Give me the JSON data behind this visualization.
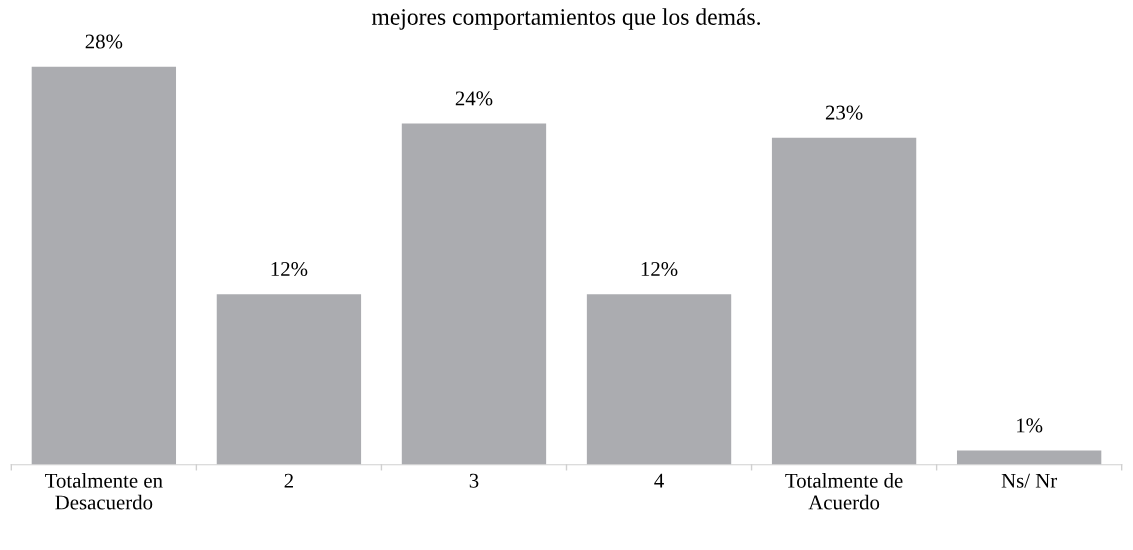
{
  "chart_data": {
    "type": "bar",
    "title": "mejores comportamientos que los demás.",
    "categories": [
      "Totalmente en\nDesacuerdo",
      "2",
      "3",
      "4",
      "Totalmente de\nAcuerdo",
      "Ns/ Nr"
    ],
    "values": [
      28,
      12,
      24,
      12,
      23,
      1
    ],
    "color": "#abacb0",
    "data_labels": true,
    "value_labels": [
      "28%",
      "12%",
      "24%",
      "12%",
      "23%",
      "1%"
    ],
    "grid": false,
    "legend": false
  }
}
